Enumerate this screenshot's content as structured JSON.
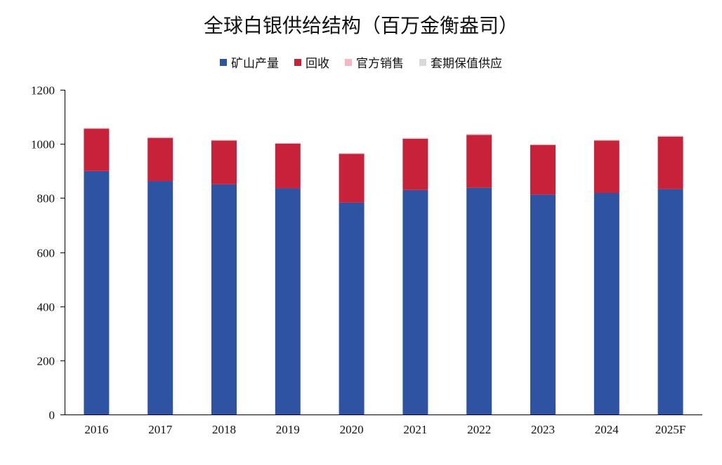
{
  "chart_data": {
    "type": "bar",
    "stacked": true,
    "title": "全球白银供给结构（百万金衡盎司）",
    "xlabel": "",
    "ylabel": "",
    "categories": [
      "2016",
      "2017",
      "2018",
      "2019",
      "2020",
      "2021",
      "2022",
      "2023",
      "2024",
      "2025F"
    ],
    "yticks": [
      "0",
      "200",
      "400",
      "600",
      "800",
      "1000",
      "1200"
    ],
    "ylim": [
      0,
      1200
    ],
    "grid": false,
    "legend_position": "top-center",
    "series": [
      {
        "name": "矿山产量",
        "color": "#2e53a2",
        "values": [
          900,
          863,
          851,
          836,
          783,
          830,
          838,
          813,
          819,
          833
        ]
      },
      {
        "name": "回收",
        "color": "#c8213a",
        "values": [
          156,
          159,
          161,
          165,
          180,
          189,
          195,
          183,
          193,
          194
        ]
      },
      {
        "name": "官方销售",
        "color": "#f6b6c2",
        "values": [
          1,
          1,
          1,
          1,
          1,
          1,
          2,
          1,
          1,
          1
        ]
      },
      {
        "name": "套期保值供应",
        "color": "#d9d9d9",
        "values": [
          0,
          3,
          2,
          0,
          3,
          3,
          2,
          0,
          3,
          3
        ]
      }
    ]
  }
}
